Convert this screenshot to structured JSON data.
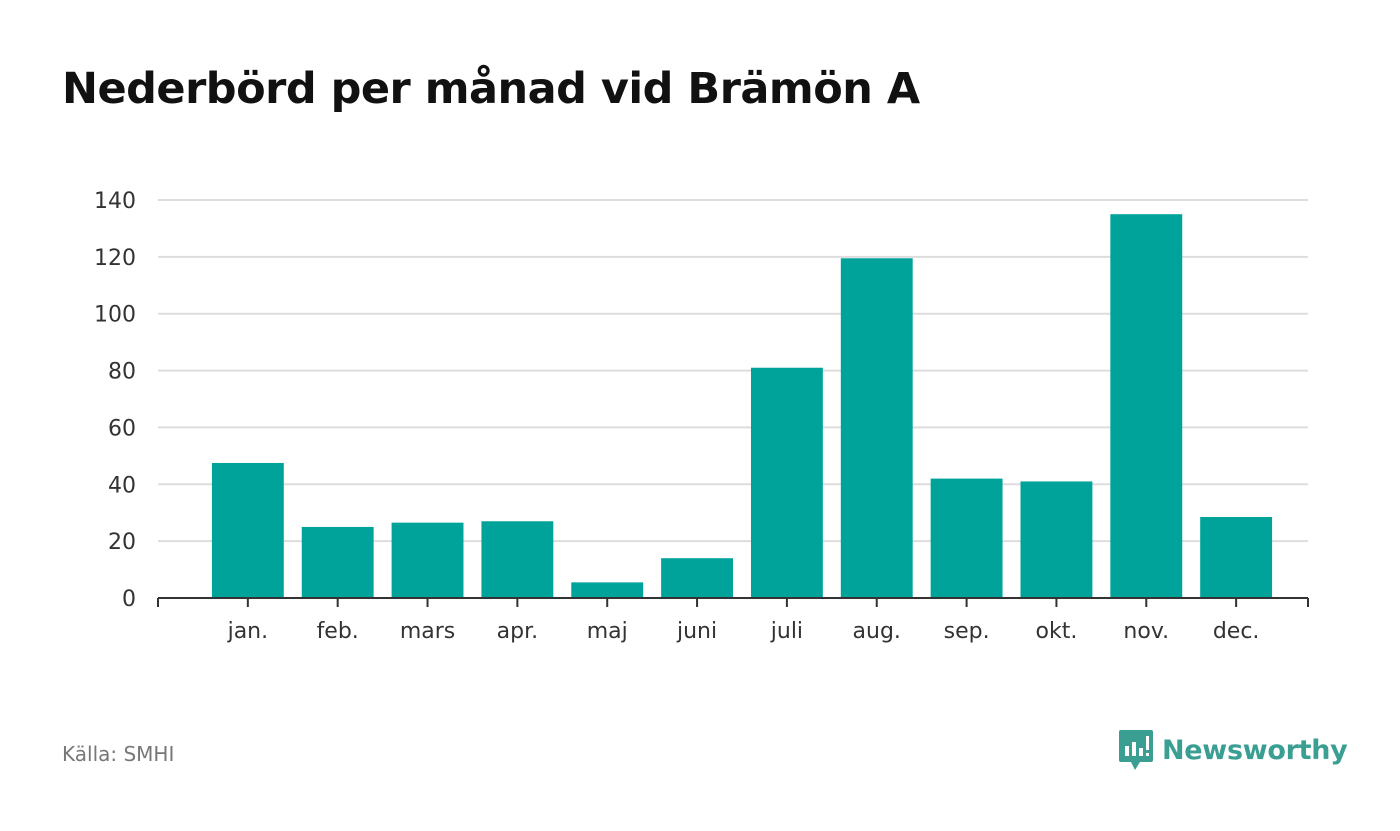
{
  "chart_data": {
    "type": "bar",
    "title": "Nederbörd per månad vid Brämön A",
    "categories": [
      "jan.",
      "feb.",
      "mars",
      "apr.",
      "maj",
      "juni",
      "juli",
      "aug.",
      "sep.",
      "okt.",
      "nov.",
      "dec."
    ],
    "values": [
      47.5,
      25,
      26.5,
      27,
      5.5,
      14,
      81,
      119.5,
      42,
      41,
      135,
      28.5
    ],
    "ylim": [
      0,
      140
    ],
    "yticks": [
      0,
      20,
      40,
      60,
      80,
      100,
      120,
      140
    ],
    "grid": true,
    "bar_color": "#00a39a"
  },
  "source": "Källa: SMHI",
  "brand": {
    "name": "Newsworthy",
    "color": "#3a9f92",
    "icon": "newsworthy-logo-icon"
  }
}
